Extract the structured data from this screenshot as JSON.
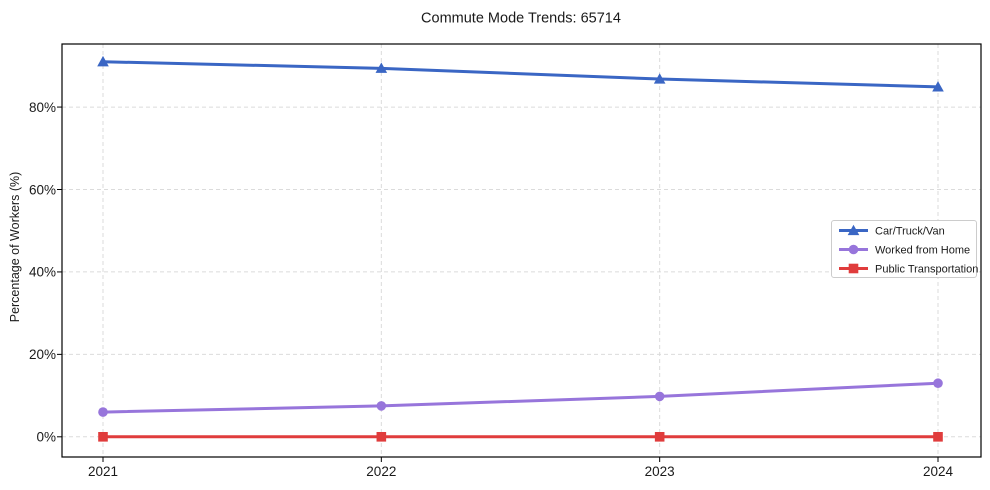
{
  "figure": {
    "background": "#ffffff"
  },
  "chart_data": {
    "type": "line",
    "title": "Commute Mode Trends: 65714",
    "xlabel": "",
    "ylabel": "Percentage of Workers (%)",
    "categories": [
      "2021",
      "2022",
      "2023",
      "2024"
    ],
    "y_ticks": [
      0,
      20,
      40,
      60,
      80
    ],
    "y_tick_labels": [
      "0%",
      "20%",
      "40%",
      "60%",
      "80%"
    ],
    "ylim": [
      -4.9,
      95.3
    ],
    "grid": true,
    "grid_style": "dashed",
    "legend_position": "center-right",
    "series": [
      {
        "name": "Car/Truck/Van",
        "marker": "triangle",
        "color": "#3A66C4",
        "values": [
          91.0,
          89.4,
          86.8,
          84.9
        ]
      },
      {
        "name": "Worked from Home",
        "marker": "circle",
        "color": "#9775DB",
        "values": [
          6.0,
          7.5,
          9.8,
          13.0
        ]
      },
      {
        "name": "Public Transportation",
        "marker": "square",
        "color": "#E03C3C",
        "values": [
          0.0,
          0.0,
          0.0,
          0.0
        ]
      }
    ],
    "colors": {
      "grid": "#DBDBDB",
      "spine": "#000000",
      "text": "#1A1A1A",
      "legend_border": "#CCCCCC",
      "legend_bg": "#FFFFFF"
    }
  }
}
